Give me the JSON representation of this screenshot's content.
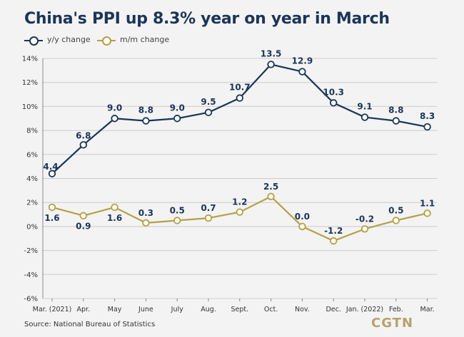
{
  "title": "China's PPI up 8.3% year on year in March",
  "source": "Source: National Bureau of Statistics",
  "brand": "CGTN",
  "colors": {
    "yy": "#1b3557",
    "mm": "#b5a045",
    "grid": "#cccccc",
    "background": "#f3f3f3"
  },
  "chart_data": {
    "type": "line",
    "title": "China's PPI up 8.3% year on year in March",
    "xlabel": "",
    "ylabel": "",
    "categories": [
      "Mar. (2021)",
      "Apr.",
      "May",
      "June",
      "July",
      "Aug.",
      "Sept.",
      "Oct.",
      "Nov.",
      "Dec.",
      "Jan. (2022)",
      "Feb.",
      "Mar."
    ],
    "ylim": [
      -6,
      14
    ],
    "yticks": [
      "-6%",
      "-4%",
      "-2%",
      "0%",
      "2%",
      "4%",
      "6%",
      "8%",
      "10%",
      "12%",
      "14%"
    ],
    "ytick_values": [
      -6,
      -4,
      -2,
      0,
      2,
      4,
      6,
      8,
      10,
      12,
      14
    ],
    "grid": "horizontal",
    "legend_position": "top-left",
    "series": [
      {
        "name": "y/y change",
        "values": [
          4.4,
          6.8,
          9.0,
          8.8,
          9.0,
          9.5,
          10.7,
          13.5,
          12.9,
          10.3,
          9.1,
          8.8,
          8.3
        ],
        "labels": [
          "4.4",
          "6.8",
          "9.0",
          "8.8",
          "9.0",
          "9.5",
          "10.7",
          "13.5",
          "12.9",
          "10.3",
          "9.1",
          "8.8",
          "8.3"
        ]
      },
      {
        "name": "m/m change",
        "values": [
          1.6,
          0.9,
          1.6,
          0.3,
          0.5,
          0.7,
          1.2,
          2.5,
          0.0,
          -1.2,
          -0.2,
          0.5,
          1.1
        ],
        "labels": [
          "1.6",
          "0.9",
          "1.6",
          "0.3",
          "0.5",
          "0.7",
          "1.2",
          "2.5",
          "0.0",
          "-1.2",
          "-0.2",
          "0.5",
          "1.1"
        ]
      }
    ]
  }
}
